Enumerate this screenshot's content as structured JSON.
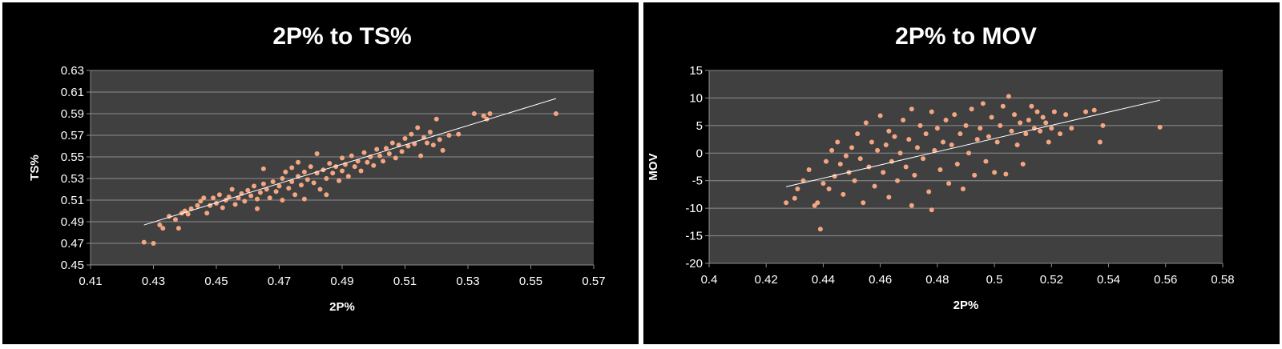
{
  "colors": {
    "background": "#000000",
    "plot_area": "#404040",
    "gridline": "#8c8c8c",
    "marker": "#f4a582",
    "trendline": "#ffffff",
    "text": "#ffffff"
  },
  "chart_data": [
    {
      "type": "scatter",
      "title": "2P% to TS%",
      "xlabel": "2P%",
      "ylabel": "TS%",
      "xlim": [
        0.41,
        0.57
      ],
      "ylim": [
        0.45,
        0.63
      ],
      "x_ticks": [
        "0.41",
        "0.43",
        "0.45",
        "0.47",
        "0.49",
        "0.51",
        "0.53",
        "0.55",
        "0.57"
      ],
      "y_ticks": [
        "0.45",
        "0.47",
        "0.49",
        "0.51",
        "0.53",
        "0.55",
        "0.57",
        "0.59",
        "0.61",
        "0.63"
      ],
      "grid": "horizontal",
      "legend": "none",
      "trendline": {
        "type": "linear",
        "points": [
          [
            0.427,
            0.487
          ],
          [
            0.558,
            0.604
          ]
        ]
      },
      "points": [
        [
          0.427,
          0.471
        ],
        [
          0.43,
          0.47
        ],
        [
          0.432,
          0.487
        ],
        [
          0.433,
          0.484
        ],
        [
          0.435,
          0.495
        ],
        [
          0.437,
          0.492
        ],
        [
          0.438,
          0.484
        ],
        [
          0.439,
          0.498
        ],
        [
          0.44,
          0.5
        ],
        [
          0.441,
          0.497
        ],
        [
          0.442,
          0.502
        ],
        [
          0.444,
          0.505
        ],
        [
          0.445,
          0.509
        ],
        [
          0.446,
          0.512
        ],
        [
          0.447,
          0.498
        ],
        [
          0.448,
          0.505
        ],
        [
          0.449,
          0.512
        ],
        [
          0.45,
          0.507
        ],
        [
          0.451,
          0.515
        ],
        [
          0.452,
          0.503
        ],
        [
          0.453,
          0.51
        ],
        [
          0.454,
          0.513
        ],
        [
          0.455,
          0.52
        ],
        [
          0.456,
          0.506
        ],
        [
          0.457,
          0.512
        ],
        [
          0.458,
          0.516
        ],
        [
          0.459,
          0.509
        ],
        [
          0.46,
          0.519
        ],
        [
          0.461,
          0.514
        ],
        [
          0.462,
          0.523
        ],
        [
          0.463,
          0.502
        ],
        [
          0.463,
          0.511
        ],
        [
          0.464,
          0.517
        ],
        [
          0.465,
          0.525
        ],
        [
          0.465,
          0.539
        ],
        [
          0.466,
          0.52
        ],
        [
          0.467,
          0.512
        ],
        [
          0.468,
          0.527
        ],
        [
          0.469,
          0.518
        ],
        [
          0.47,
          0.523
        ],
        [
          0.471,
          0.51
        ],
        [
          0.471,
          0.53
        ],
        [
          0.472,
          0.536
        ],
        [
          0.473,
          0.521
        ],
        [
          0.474,
          0.527
        ],
        [
          0.474,
          0.54
        ],
        [
          0.475,
          0.515
        ],
        [
          0.476,
          0.532
        ],
        [
          0.476,
          0.545
        ],
        [
          0.477,
          0.524
        ],
        [
          0.478,
          0.536
        ],
        [
          0.478,
          0.511
        ],
        [
          0.479,
          0.529
        ],
        [
          0.48,
          0.541
        ],
        [
          0.481,
          0.526
        ],
        [
          0.482,
          0.535
        ],
        [
          0.482,
          0.553
        ],
        [
          0.483,
          0.52
        ],
        [
          0.484,
          0.538
        ],
        [
          0.485,
          0.53
        ],
        [
          0.485,
          0.515
        ],
        [
          0.486,
          0.544
        ],
        [
          0.487,
          0.535
        ],
        [
          0.488,
          0.541
        ],
        [
          0.489,
          0.528
        ],
        [
          0.49,
          0.549
        ],
        [
          0.49,
          0.537
        ],
        [
          0.491,
          0.543
        ],
        [
          0.492,
          0.532
        ],
        [
          0.493,
          0.551
        ],
        [
          0.494,
          0.541
        ],
        [
          0.495,
          0.546
        ],
        [
          0.496,
          0.537
        ],
        [
          0.497,
          0.554
        ],
        [
          0.498,
          0.545
        ],
        [
          0.499,
          0.55
        ],
        [
          0.5,
          0.542
        ],
        [
          0.501,
          0.557
        ],
        [
          0.502,
          0.551
        ],
        [
          0.503,
          0.546
        ],
        [
          0.504,
          0.558
        ],
        [
          0.505,
          0.553
        ],
        [
          0.506,
          0.563
        ],
        [
          0.507,
          0.549
        ],
        [
          0.508,
          0.561
        ],
        [
          0.509,
          0.555
        ],
        [
          0.51,
          0.567
        ],
        [
          0.511,
          0.56
        ],
        [
          0.512,
          0.571
        ],
        [
          0.513,
          0.562
        ],
        [
          0.514,
          0.577
        ],
        [
          0.515,
          0.551
        ],
        [
          0.516,
          0.568
        ],
        [
          0.517,
          0.563
        ],
        [
          0.518,
          0.573
        ],
        [
          0.519,
          0.561
        ],
        [
          0.52,
          0.585
        ],
        [
          0.521,
          0.566
        ],
        [
          0.522,
          0.556
        ],
        [
          0.524,
          0.57
        ],
        [
          0.527,
          0.571
        ],
        [
          0.532,
          0.59
        ],
        [
          0.535,
          0.588
        ],
        [
          0.536,
          0.585
        ],
        [
          0.537,
          0.59
        ],
        [
          0.558,
          0.59
        ]
      ]
    },
    {
      "type": "scatter",
      "title": "2P% to MOV",
      "xlabel": "2P%",
      "ylabel": "MOV",
      "xlim": [
        0.4,
        0.58
      ],
      "ylim": [
        -20,
        15
      ],
      "x_ticks": [
        "0.4",
        "0.42",
        "0.44",
        "0.46",
        "0.48",
        "0.5",
        "0.52",
        "0.54",
        "0.56",
        "0.58"
      ],
      "y_ticks": [
        "-20",
        "-15",
        "-10",
        "-5",
        "0",
        "5",
        "10",
        "15"
      ],
      "grid": "horizontal",
      "legend": "none",
      "trendline": {
        "type": "linear",
        "points": [
          [
            0.427,
            -6.1
          ],
          [
            0.558,
            9.6
          ]
        ]
      },
      "points": [
        [
          0.427,
          -9.0
        ],
        [
          0.43,
          -8.2
        ],
        [
          0.431,
          -6.5
        ],
        [
          0.433,
          -5.0
        ],
        [
          0.435,
          -3.0
        ],
        [
          0.437,
          -9.5
        ],
        [
          0.438,
          -9.0
        ],
        [
          0.439,
          -13.8
        ],
        [
          0.44,
          -5.5
        ],
        [
          0.441,
          -1.5
        ],
        [
          0.442,
          -6.5
        ],
        [
          0.443,
          0.5
        ],
        [
          0.444,
          -4.2
        ],
        [
          0.445,
          2.0
        ],
        [
          0.446,
          -2.0
        ],
        [
          0.447,
          -7.5
        ],
        [
          0.448,
          -0.5
        ],
        [
          0.449,
          -3.5
        ],
        [
          0.45,
          1.0
        ],
        [
          0.451,
          -5.0
        ],
        [
          0.452,
          3.5
        ],
        [
          0.453,
          -1.0
        ],
        [
          0.454,
          -9.0
        ],
        [
          0.455,
          5.5
        ],
        [
          0.456,
          -2.5
        ],
        [
          0.457,
          2.0
        ],
        [
          0.458,
          -6.0
        ],
        [
          0.459,
          0.5
        ],
        [
          0.46,
          6.8
        ],
        [
          0.461,
          -3.5
        ],
        [
          0.462,
          1.5
        ],
        [
          0.463,
          -8.0
        ],
        [
          0.463,
          4.0
        ],
        [
          0.464,
          -1.5
        ],
        [
          0.465,
          3.0
        ],
        [
          0.466,
          -5.0
        ],
        [
          0.467,
          0.0
        ],
        [
          0.468,
          6.0
        ],
        [
          0.469,
          -2.5
        ],
        [
          0.47,
          2.5
        ],
        [
          0.471,
          -9.5
        ],
        [
          0.471,
          8.0
        ],
        [
          0.472,
          -4.0
        ],
        [
          0.473,
          1.0
        ],
        [
          0.474,
          5.0
        ],
        [
          0.475,
          -1.0
        ],
        [
          0.476,
          3.5
        ],
        [
          0.477,
          -7.0
        ],
        [
          0.478,
          7.5
        ],
        [
          0.478,
          -10.3
        ],
        [
          0.479,
          0.5
        ],
        [
          0.48,
          4.5
        ],
        [
          0.481,
          -3.0
        ],
        [
          0.482,
          2.0
        ],
        [
          0.483,
          6.0
        ],
        [
          0.484,
          -5.5
        ],
        [
          0.485,
          1.5
        ],
        [
          0.486,
          7.0
        ],
        [
          0.487,
          -2.0
        ],
        [
          0.488,
          3.5
        ],
        [
          0.489,
          -6.5
        ],
        [
          0.49,
          5.0
        ],
        [
          0.491,
          0.0
        ],
        [
          0.492,
          8.0
        ],
        [
          0.493,
          -4.0
        ],
        [
          0.494,
          2.5
        ],
        [
          0.495,
          4.5
        ],
        [
          0.496,
          9.0
        ],
        [
          0.497,
          -1.5
        ],
        [
          0.498,
          3.0
        ],
        [
          0.499,
          6.5
        ],
        [
          0.5,
          -3.5
        ],
        [
          0.501,
          2.0
        ],
        [
          0.502,
          5.0
        ],
        [
          0.503,
          8.5
        ],
        [
          0.504,
          -3.8
        ],
        [
          0.505,
          10.3
        ],
        [
          0.506,
          4.0
        ],
        [
          0.507,
          7.0
        ],
        [
          0.508,
          1.5
        ],
        [
          0.509,
          5.5
        ],
        [
          0.51,
          -2.0
        ],
        [
          0.511,
          3.5
        ],
        [
          0.512,
          6.0
        ],
        [
          0.513,
          8.5
        ],
        [
          0.514,
          4.5
        ],
        [
          0.515,
          7.5
        ],
        [
          0.516,
          4.0
        ],
        [
          0.517,
          6.5
        ],
        [
          0.518,
          5.5
        ],
        [
          0.519,
          2.0
        ],
        [
          0.52,
          4.5
        ],
        [
          0.521,
          7.5
        ],
        [
          0.523,
          3.5
        ],
        [
          0.525,
          7.0
        ],
        [
          0.527,
          4.5
        ],
        [
          0.532,
          7.5
        ],
        [
          0.535,
          7.8
        ],
        [
          0.537,
          2.0
        ],
        [
          0.538,
          5.0
        ],
        [
          0.558,
          4.7
        ]
      ]
    }
  ]
}
